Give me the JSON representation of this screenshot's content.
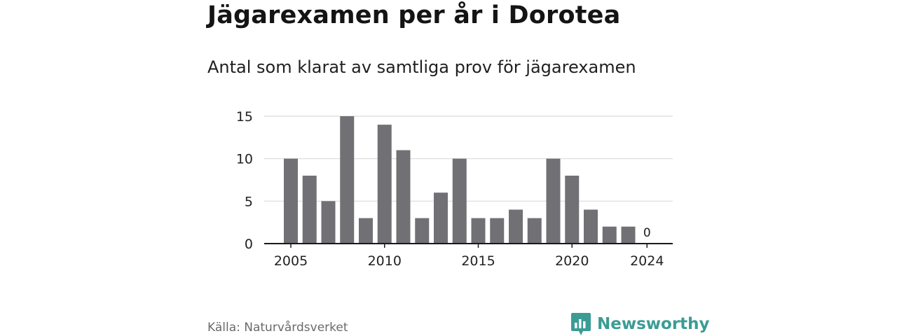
{
  "header": {
    "title": "Jägarexamen per år i Dorotea",
    "subtitle": "Antal som klarat av samtliga prov för jägarexamen"
  },
  "footer": {
    "source": "Källa: Naturvårdsverket",
    "brand": "Newsworthy",
    "brand_icon": "bar-chart-speech-bubble-icon"
  },
  "colors": {
    "bar": "#717075",
    "grid": "#d9d9d9",
    "axis": "#1a1a1a",
    "brand": "#3b9c95"
  },
  "chart_data": {
    "type": "bar",
    "title": "Jägarexamen per år i Dorotea",
    "subtitle": "Antal som klarat av samtliga prov för jägarexamen",
    "x": [
      2005,
      2006,
      2007,
      2008,
      2009,
      2010,
      2011,
      2012,
      2013,
      2014,
      2015,
      2016,
      2017,
      2018,
      2019,
      2020,
      2021,
      2022,
      2023,
      2024
    ],
    "values": [
      10,
      8,
      5,
      15,
      3,
      14,
      11,
      3,
      6,
      10,
      3,
      3,
      4,
      3,
      10,
      8,
      4,
      2,
      2,
      0
    ],
    "xticks": [
      "2005",
      "2010",
      "2015",
      "2020",
      "2024"
    ],
    "yticks": [
      "0",
      "5",
      "10",
      "15"
    ],
    "ylim": [
      0,
      15
    ],
    "grid": true,
    "data_labels": [
      {
        "x": 2024,
        "label": "0"
      }
    ],
    "xlabel": "",
    "ylabel": ""
  }
}
